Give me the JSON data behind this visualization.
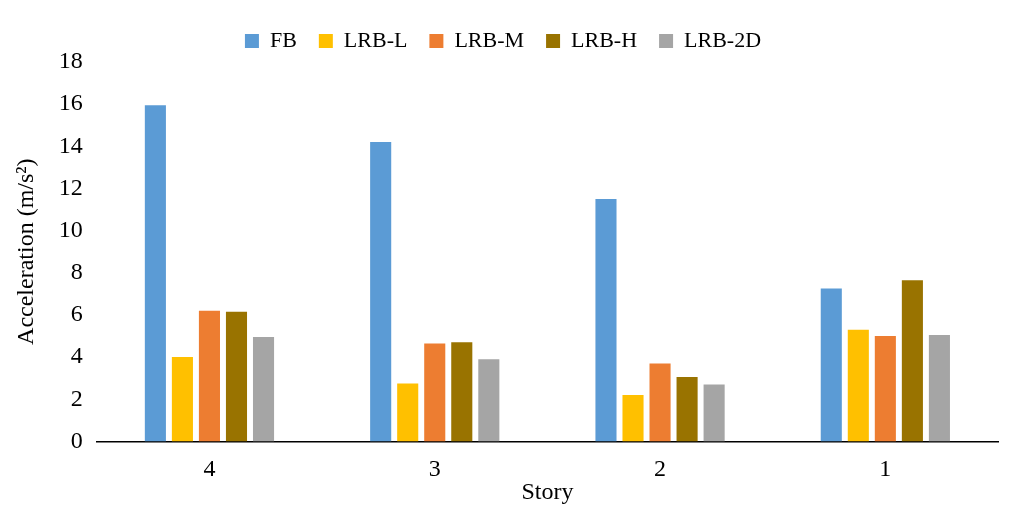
{
  "chart_data": {
    "type": "bar",
    "xlabel": "Story",
    "ylabel": "Acceleration (m/s²)",
    "categories": [
      "4",
      "3",
      "2",
      "1"
    ],
    "series": [
      {
        "name": "FB",
        "color": "#5b9bd5",
        "values": [
          15.95,
          14.2,
          11.5,
          7.25
        ]
      },
      {
        "name": "LRB-L",
        "color": "#ffc000",
        "values": [
          4.0,
          2.75,
          2.2,
          5.3
        ]
      },
      {
        "name": "LRB-M",
        "color": "#ed7d31",
        "values": [
          6.2,
          4.65,
          3.7,
          5.0
        ]
      },
      {
        "name": "LRB-H",
        "color": "#997300",
        "values": [
          6.15,
          4.7,
          3.05,
          7.65
        ]
      },
      {
        "name": "LRB-2D",
        "color": "#a5a5a5",
        "values": [
          4.95,
          3.9,
          2.7,
          5.05
        ]
      }
    ],
    "ylim": [
      0,
      18
    ],
    "yticks": [
      0,
      2,
      4,
      6,
      8,
      10,
      12,
      14,
      16,
      18
    ],
    "grid": false,
    "legend": "top"
  }
}
